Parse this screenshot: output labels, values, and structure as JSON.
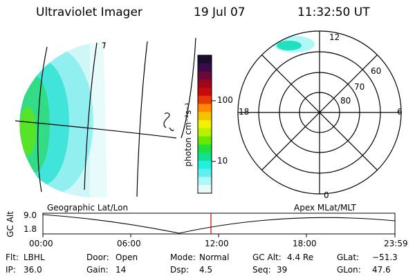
{
  "header": {
    "title": "Ultraviolet Imager",
    "date": "19 Jul 07",
    "time": "11:32:50 UT"
  },
  "colorbar": {
    "label": "photon cm⁻²s⁻¹",
    "ticks": [
      "100",
      "10"
    ],
    "colors": [
      "#1a0d2e",
      "#3a0a4a",
      "#6a0838",
      "#9a0820",
      "#c80a0a",
      "#e83a08",
      "#ff8a00",
      "#f5c400",
      "#f0f000",
      "#b8f000",
      "#66e800",
      "#20e040",
      "#10e090",
      "#20f0e0",
      "#60f0f0",
      "#b0f8f8",
      "#e8fbfb"
    ]
  },
  "polar": {
    "lat_labels": [
      "60",
      "70",
      "80"
    ],
    "mlt_labels": {
      "top": "12",
      "left": "18",
      "right": "6",
      "bottom": "0"
    }
  },
  "timeline": {
    "ylabel": "GC Alt",
    "yticks": [
      "9.0",
      "1.8"
    ],
    "left_label": "Geographic Lat/Lon",
    "right_label": "Apex MLat/MLT",
    "xticks": [
      "00:00",
      "06:00",
      "12:00",
      "18:00",
      "23:59"
    ],
    "current_time_marker_color": "#cc0000"
  },
  "info": {
    "row1": [
      {
        "key": "Flt:",
        "value": "LBHL"
      },
      {
        "key": "Door:",
        "value": "Open"
      },
      {
        "key": "Mode:",
        "value": "Normal"
      },
      {
        "key": "GC Alt:",
        "value": "4.4 Re"
      },
      {
        "key": "GLat:",
        "value": "−51.3"
      }
    ],
    "row2": [
      {
        "key": "IP:",
        "value": "36.0"
      },
      {
        "key": "Gain:",
        "value": "14"
      },
      {
        "key": "Dsp:",
        "value": "4.5"
      },
      {
        "key": "Seq:",
        "value": "39"
      },
      {
        "key": "GLon:",
        "value": "47.6"
      }
    ]
  }
}
